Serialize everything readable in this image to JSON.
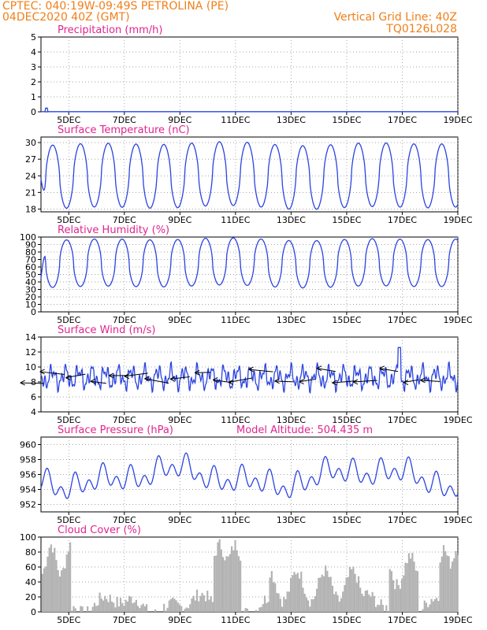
{
  "header": {
    "line1": "CPTEC:   040:19W-09:49S  PETROLINA (PE)",
    "line2": "04DEC2020 40Z (GMT)",
    "grid_line": "Vertical Grid Line: 40Z",
    "code": "TQ0126L028"
  },
  "colors": {
    "line": "#2b44e0",
    "title": "#e0258e",
    "header": "#ef7f1a",
    "bar": "#b3b3b3",
    "wind_arrow": "#000000"
  },
  "x_axis": {
    "ticks": [
      "5DEC",
      "7DEC",
      "9DEC",
      "11DEC",
      "13DEC",
      "15DEC",
      "17DEC",
      "19DEC"
    ],
    "tick_days": [
      5,
      7,
      9,
      11,
      13,
      15,
      17,
      19
    ],
    "range_days": [
      4,
      19
    ]
  },
  "chart_data": [
    {
      "type": "line",
      "title": "Precipitation (mm/h)",
      "ylim": [
        0,
        5
      ],
      "yticks": [
        0,
        1,
        2,
        3,
        4,
        5
      ],
      "generator": {
        "kind": "spike",
        "spike_day": 4.2,
        "spike_value": 0.25
      }
    },
    {
      "type": "line",
      "title": "Surface Temperature (nC)",
      "ylim": [
        17.5,
        31
      ],
      "yticks": [
        18,
        21,
        24,
        27,
        30
      ],
      "generator": {
        "kind": "diurnal",
        "min": 18.3,
        "max": 29.8,
        "peak_phase": 0.42,
        "sharp": 1.6,
        "start_value": 23.5
      }
    },
    {
      "type": "line",
      "title": "Relative Humidity (%)",
      "ylim": [
        0,
        100
      ],
      "yticks": [
        0,
        10,
        20,
        30,
        40,
        50,
        60,
        70,
        80,
        90,
        100
      ],
      "generator": {
        "kind": "diurnal",
        "min": 34,
        "max": 97,
        "peak_phase": 0.92,
        "sharp": 1.8,
        "start_value": 45
      }
    },
    {
      "type": "line",
      "title": "Surface Wind (m/s)",
      "ylim": [
        4,
        14
      ],
      "yticks": [
        4,
        6,
        8,
        10,
        12,
        14
      ],
      "generator": {
        "kind": "noisy",
        "base": 8.6,
        "amp": 1.6,
        "peak_day": 16.9,
        "peak_value": 12.6
      },
      "vectors": "wind barbs along speed line, mostly easterly, drawn every 6h"
    },
    {
      "type": "line",
      "title": "Surface Pressure (hPa)",
      "subtitle": "Model Altitude: 504.435  m",
      "ylim": [
        951,
        961
      ],
      "yticks": [
        952,
        954,
        956,
        958,
        960
      ],
      "generator": {
        "kind": "semidiurnal",
        "base": 955.6,
        "amp": 2.0
      }
    },
    {
      "type": "bar",
      "title": "Cloud Cover (%)",
      "ylim": [
        0,
        100
      ],
      "yticks": [
        0,
        20,
        40,
        60,
        80,
        100
      ],
      "generator": {
        "kind": "cloud"
      }
    }
  ]
}
